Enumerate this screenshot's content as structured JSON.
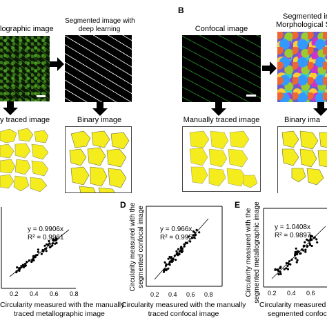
{
  "panels": {
    "A": {
      "top_left_label": "lographic image",
      "top_right_label_1": "Segmented image with",
      "top_right_label_2": "deep learning",
      "bottom_left_label": "y traced image",
      "bottom_right_label": "Binary image"
    },
    "B": {
      "letter": "B",
      "top_left_label": "Confocal image",
      "top_right_label_1": "Segmented ima",
      "top_right_label_2": "Morphological Seg",
      "bottom_left_label": "Manually traced image",
      "bottom_right_label": "Binary ima"
    },
    "C": {
      "eq": "y = 0.9906x",
      "r2": "R² = 0.9961",
      "xlabel_1": "Circularity measured with the manually",
      "xlabel_2": "traced metallographic image",
      "ticks": [
        "0.2",
        "0.4",
        "0.6",
        "0.8"
      ]
    },
    "D": {
      "letter": "D",
      "eq": "y = 0.966x",
      "r2": "R² = 0.9954",
      "ylabel_1": "Circularity measured with the",
      "ylabel_2": "segmented confocal image",
      "xlabel_1": "Circularity measured with the manually",
      "xlabel_2": "traced confocal image",
      "ticks": [
        "0.2",
        "0.4",
        "0.6",
        "0.8"
      ]
    },
    "E": {
      "letter": "E",
      "eq": "y = 1.0408x",
      "r2": "R² = 0.9897",
      "ylabel_1": "Circularity measured with the",
      "ylabel_2": "segmented metallographic image",
      "xlabel_1": "Circularity measured",
      "xlabel_2": "segmented confoc",
      "ticks": [
        "0.2",
        "0.4",
        "0.6"
      ]
    }
  },
  "colors": {
    "yellow_fill": "#f5ec1e",
    "black": "#000000"
  }
}
